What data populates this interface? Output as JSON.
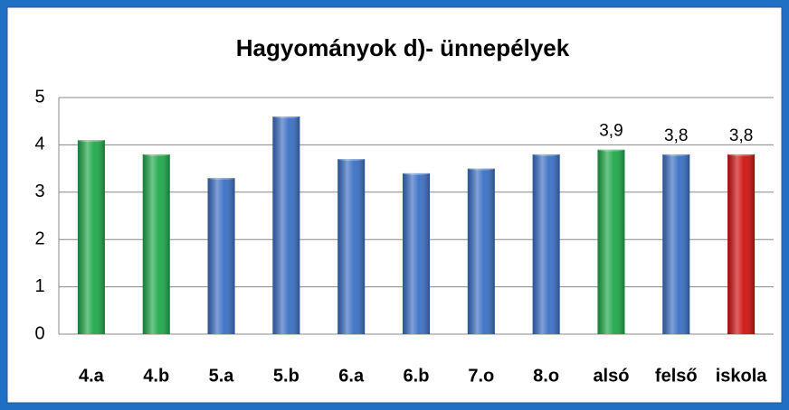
{
  "chart_data": {
    "type": "bar",
    "title": "Hagyományok d)- ünnepélyek",
    "categories": [
      "4.a",
      "4.b",
      "5.a",
      "5.b",
      "6.a",
      "6.b",
      "7.o",
      "8.o",
      "alsó",
      "felső",
      "iskola"
    ],
    "values": [
      4.1,
      3.8,
      3.3,
      4.6,
      3.7,
      3.4,
      3.5,
      3.8,
      3.9,
      3.8,
      3.8
    ],
    "value_labels": [
      null,
      null,
      null,
      null,
      null,
      null,
      null,
      null,
      "3,9",
      "3,8",
      "3,8"
    ],
    "colors": [
      "#1fa84a",
      "#1fa84a",
      "#3a6fc4",
      "#3a6fc4",
      "#3a6fc4",
      "#3a6fc4",
      "#3a6fc4",
      "#3a6fc4",
      "#1fa84a",
      "#3a6fc4",
      "#d01010"
    ],
    "ylim": [
      0,
      5
    ],
    "yticks": [
      0,
      1,
      2,
      3,
      4,
      5
    ],
    "grid": true
  }
}
